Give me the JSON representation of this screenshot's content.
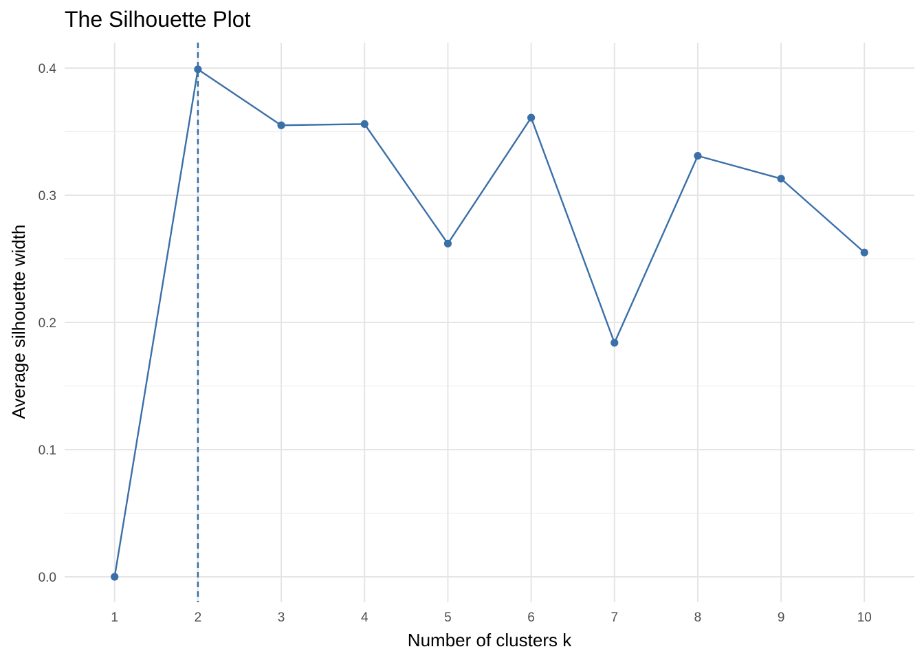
{
  "colors": {
    "series": "#3a6fa8",
    "grid_major": "#e5e5e5",
    "grid_minor": "#efefef",
    "tick_text": "#4d4d4d",
    "title_text": "#000000"
  },
  "chart_data": {
    "type": "line",
    "title": "The Silhouette Plot",
    "xlabel": "Number of clusters k",
    "ylabel": "Average silhouette width",
    "x": [
      1,
      2,
      3,
      4,
      5,
      6,
      7,
      8,
      9,
      10
    ],
    "x_tick_labels": [
      "1",
      "2",
      "3",
      "4",
      "5",
      "6",
      "7",
      "8",
      "9",
      "10"
    ],
    "y_ticks": [
      0.0,
      0.1,
      0.2,
      0.3,
      0.4
    ],
    "y_tick_labels": [
      "0.0",
      "0.1",
      "0.2",
      "0.3",
      "0.4"
    ],
    "ylim": [
      -0.02,
      0.42
    ],
    "xlim": [
      0.4,
      10.6
    ],
    "series": [
      {
        "values": [
          0.0,
          0.399,
          0.355,
          0.356,
          0.262,
          0.361,
          0.184,
          0.331,
          0.313,
          0.255
        ]
      }
    ],
    "vline": {
      "x": 2,
      "style": "dashed"
    },
    "grid": true,
    "markers": "point"
  }
}
